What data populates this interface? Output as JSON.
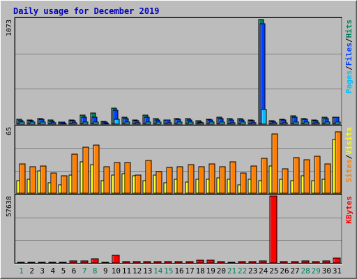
{
  "chart_data": {
    "type": "bar",
    "title": "Daily usage for December 2019",
    "colors": {
      "background": "#bcbcbc",
      "title": "#0000c0",
      "hits": "#00805c",
      "files": "#0040ff",
      "pages": "#00c0ff",
      "visits": "#ffff00",
      "sites": "#ff8000",
      "kbytes": "#ff0000",
      "weekday_label": "#000000",
      "weekend_label": "#00805c"
    },
    "categories": [
      "1",
      "2",
      "3",
      "4",
      "5",
      "6",
      "7",
      "8",
      "9",
      "10",
      "11",
      "12",
      "13",
      "14",
      "15",
      "16",
      "17",
      "18",
      "19",
      "20",
      "21",
      "22",
      "23",
      "24",
      "25",
      "26",
      "27",
      "28",
      "29",
      "30",
      "31"
    ],
    "weekend_days": [
      "1",
      "7",
      "8",
      "14",
      "15",
      "21",
      "22",
      "28",
      "29"
    ],
    "panels": [
      {
        "id": "top",
        "max_label": "1073",
        "ylim": [
          0,
          1073
        ],
        "legend": [
          "Pages",
          "Files",
          "Hits"
        ],
        "series": [
          {
            "name": "Hits",
            "values": [
              50,
              45,
              60,
              40,
              25,
              45,
              95,
              115,
              30,
              165,
              75,
              40,
              90,
              55,
              45,
              60,
              55,
              35,
              50,
              70,
              55,
              55,
              45,
              1073,
              35,
              50,
              85,
              60,
              45,
              75,
              75
            ]
          },
          {
            "name": "Files",
            "values": [
              35,
              35,
              50,
              30,
              20,
              35,
              75,
              75,
              25,
              140,
              55,
              35,
              75,
              45,
              40,
              50,
              45,
              25,
              40,
              55,
              40,
              45,
              35,
              1030,
              30,
              40,
              70,
              50,
              35,
              60,
              75
            ]
          },
          {
            "name": "Pages",
            "values": [
              20,
              20,
              25,
              15,
              10,
              15,
              25,
              25,
              10,
              50,
              20,
              15,
              25,
              20,
              15,
              20,
              20,
              15,
              20,
              20,
              15,
              20,
              15,
              150,
              15,
              15,
              25,
              20,
              15,
              20,
              20
            ]
          }
        ]
      },
      {
        "id": "middle",
        "max_label": "65",
        "ylim": [
          0,
          65
        ],
        "legend": [
          "Sites",
          "Visits"
        ],
        "series": [
          {
            "name": "Visits",
            "values": [
              12,
              14,
              22,
              10,
              8,
              18,
              31,
              28,
              12,
              18,
              19,
              17,
              12,
              18,
              10,
              14,
              11,
              14,
              14,
              15,
              14,
              8,
              14,
              12,
              27,
              14,
              12,
              17,
              12,
              14,
              53
            ]
          },
          {
            "name": "Sites",
            "values": [
              29,
              26,
              27,
              20,
              17,
              38,
              45,
              47,
              26,
              30,
              30,
              18,
              32,
              21,
              25,
              26,
              28,
              26,
              29,
              26,
              31,
              20,
              27,
              34,
              58,
              24,
              35,
              33,
              36,
              29,
              60
            ]
          }
        ]
      },
      {
        "id": "bottom",
        "max_label": "57638",
        "ylim": [
          0,
          57638
        ],
        "legend": [
          "KBytes"
        ],
        "series": [
          {
            "name": "KBytes",
            "values": [
              700,
              600,
              700,
              700,
              900,
              1800,
              2000,
              3500,
              800,
              6500,
              1000,
              1100,
              1300,
              1200,
              1000,
              1100,
              1200,
              2500,
              2200,
              1000,
              900,
              1000,
              1200,
              1900,
              57638,
              1000,
              1100,
              2000,
              1500,
              1800,
              4300
            ]
          }
        ]
      }
    ]
  }
}
